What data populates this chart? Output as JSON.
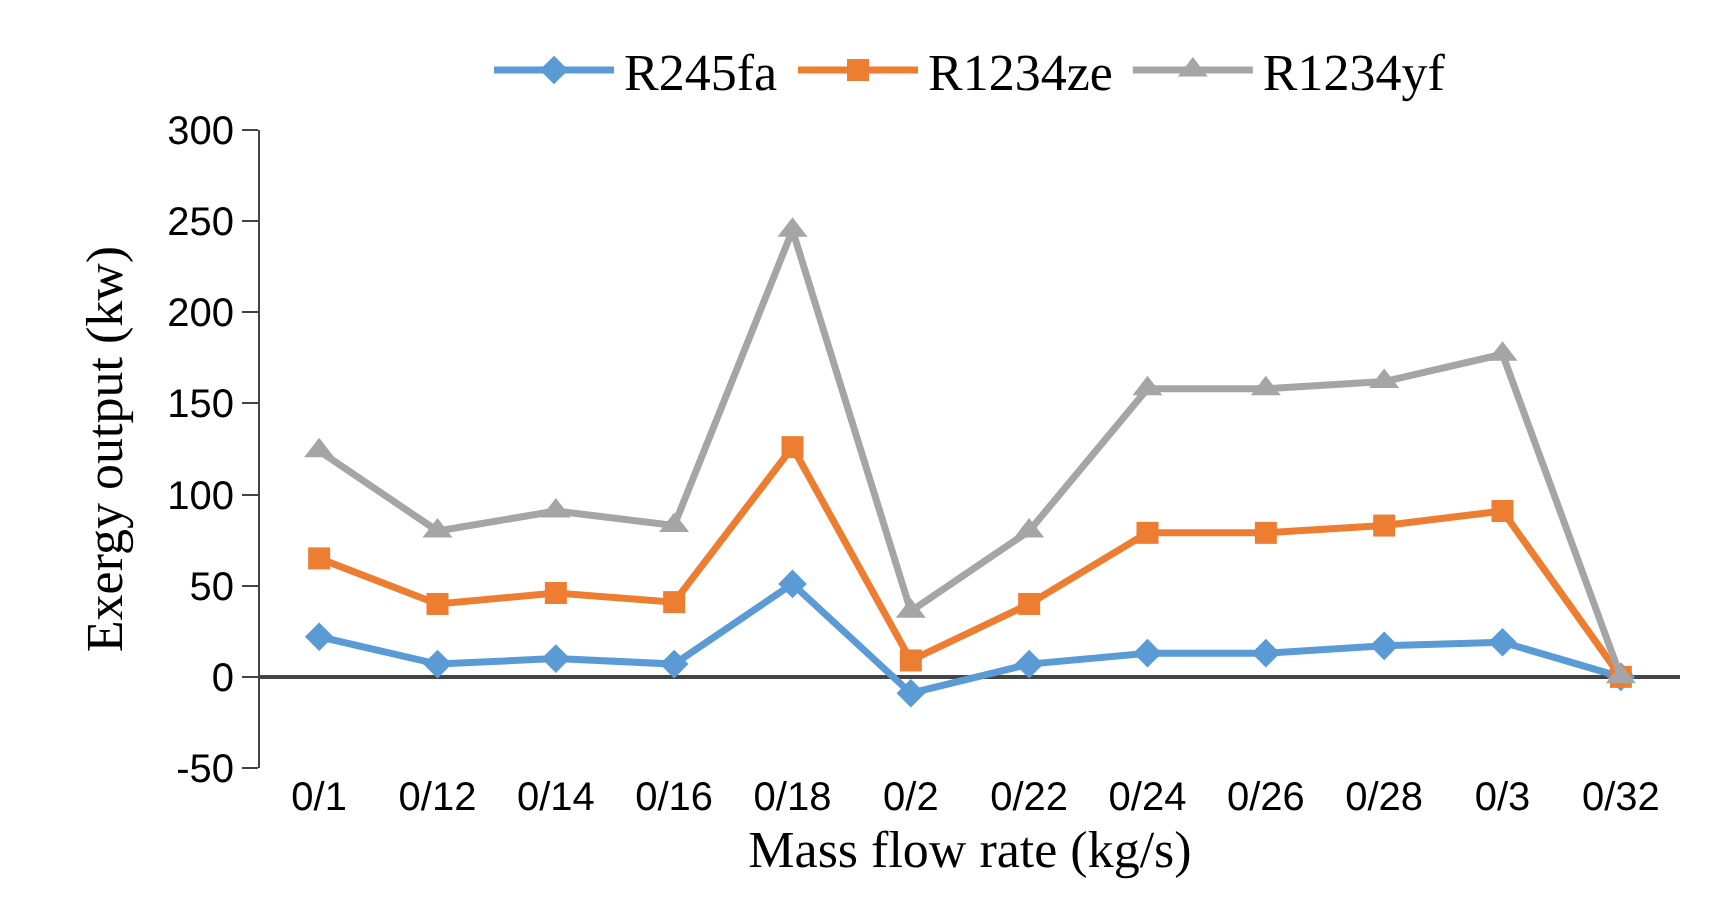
{
  "chart_data": {
    "type": "line",
    "xlabel": "Mass flow rate (kg/s)",
    "ylabel": "Exergy output (kw)",
    "categories": [
      "0/1",
      "0/12",
      "0/14",
      "0/16",
      "0/18",
      "0/2",
      "0/22",
      "0/24",
      "0/26",
      "0/28",
      "0/3",
      "0/32"
    ],
    "series": [
      {
        "name": "R245fa",
        "color": "#5b9bd5",
        "marker": "diamond",
        "values": [
          22,
          7,
          10,
          7,
          51,
          -9,
          7,
          13,
          13,
          17,
          19,
          0
        ]
      },
      {
        "name": "R1234ze",
        "color": "#ed7d31",
        "marker": "square",
        "values": [
          65,
          40,
          46,
          41,
          126,
          9,
          40,
          79,
          79,
          83,
          91,
          0
        ]
      },
      {
        "name": "R1234yf",
        "color": "#a5a5a5",
        "marker": "triangle",
        "values": [
          124,
          80,
          91,
          83,
          245,
          36,
          80,
          158,
          158,
          162,
          177,
          0
        ]
      }
    ],
    "ylim": [
      -50,
      300
    ],
    "yticks": [
      -50,
      0,
      50,
      100,
      150,
      200,
      250,
      300
    ],
    "grid": false,
    "legend": "top"
  }
}
